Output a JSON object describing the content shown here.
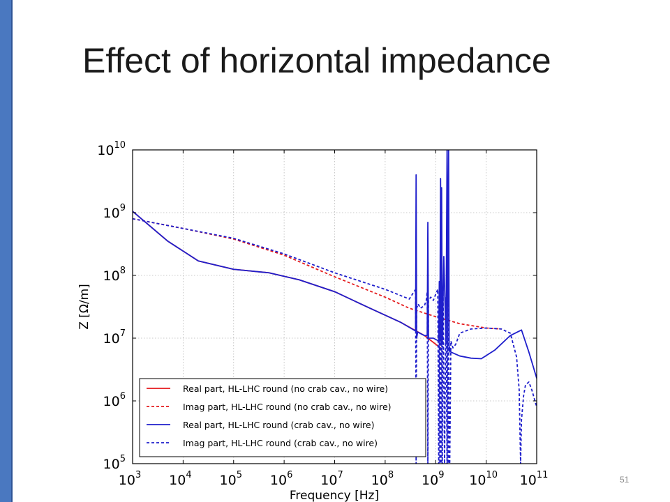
{
  "slide": {
    "title": "Effect of horizontal impedance",
    "page_number": "51",
    "accent_color": "#4a78c0"
  },
  "chart_data": {
    "type": "line",
    "xlabel": "Frequency [Hz]",
    "ylabel": "Z [Ω/m]",
    "xscale": "log",
    "yscale": "log",
    "xlim": [
      1000,
      100000000000
    ],
    "ylim": [
      100000,
      10000000000
    ],
    "grid": true,
    "legend_position": "lower-left",
    "x_tick_values": [
      1000,
      10000,
      100000,
      1000000,
      10000000,
      100000000,
      1000000000,
      10000000000,
      100000000000
    ],
    "x_tick_labels": [
      {
        "base": "10",
        "exp": "3"
      },
      {
        "base": "10",
        "exp": "4"
      },
      {
        "base": "10",
        "exp": "5"
      },
      {
        "base": "10",
        "exp": "6"
      },
      {
        "base": "10",
        "exp": "7"
      },
      {
        "base": "10",
        "exp": "8"
      },
      {
        "base": "10",
        "exp": "9"
      },
      {
        "base": "10",
        "exp": "10"
      },
      {
        "base": "10",
        "exp": "11"
      }
    ],
    "y_tick_values": [
      100000,
      1000000,
      10000000,
      100000000,
      1000000000,
      10000000000
    ],
    "y_tick_labels": [
      {
        "base": "10",
        "exp": "5"
      },
      {
        "base": "10",
        "exp": "6"
      },
      {
        "base": "10",
        "exp": "7"
      },
      {
        "base": "10",
        "exp": "8"
      },
      {
        "base": "10",
        "exp": "9"
      },
      {
        "base": "10",
        "exp": "10"
      }
    ],
    "series": [
      {
        "name": "Real part, HL-LHC round (no crab cav., no wire)",
        "color": "#e41a1c",
        "dash": "solid",
        "x": [
          1000,
          5000,
          20000,
          100000,
          500000,
          2000000,
          10000000,
          50000000,
          200000000,
          600000000,
          1000000000,
          1300000000
        ],
        "y": [
          1050000000,
          350000000,
          170000000,
          125000000,
          110000000,
          85000000,
          55000000,
          30000000,
          18000000,
          11000000,
          8000000,
          6800000
        ]
      },
      {
        "name": "Imag part, HL-LHC round (no crab cav., no wire)",
        "color": "#e41a1c",
        "dash": "dashed",
        "x": [
          1000,
          10000,
          100000,
          1000000,
          10000000,
          100000000,
          300000000,
          1000000000,
          3000000000,
          10000000000,
          20000000000
        ],
        "y": [
          800000000,
          560000000,
          380000000,
          210000000,
          95000000,
          45000000,
          30000000,
          22000000,
          17000000,
          14500000,
          14000000
        ]
      },
      {
        "name": "Real part, HL-LHC round (crab cav., no wire)",
        "color": "#1f1fcc",
        "dash": "solid",
        "x": [
          1000,
          5000,
          20000,
          100000,
          500000,
          2000000,
          10000000,
          50000000,
          200000000,
          400000000,
          410000000,
          420000000,
          440000000,
          600000000,
          680000000,
          700000000,
          720000000,
          900000000,
          1150000000,
          1180000000,
          1210000000,
          1250000000,
          1280000000,
          1310000000,
          1350000000,
          1450000000,
          1600000000,
          1680000000,
          1720000000,
          1760000000,
          1800000000,
          1850000000,
          1900000000,
          2000000000,
          3000000000,
          5000000000,
          8000000000,
          15000000000,
          30000000000,
          50000000000,
          70000000000,
          100000000000
        ],
        "y": [
          1050000000,
          350000000,
          170000000,
          125000000,
          110000000,
          85000000,
          55000000,
          30000000,
          18000000,
          13000000,
          4000000000,
          10000000,
          12500000,
          11000000,
          11000000,
          700000000,
          10000000,
          10000000,
          9000000,
          80000000,
          9000000,
          3500000000,
          8500000,
          2500000000,
          8000000,
          200000000,
          8000000,
          10000000000,
          7000000,
          600000000,
          10000000000,
          6000000,
          7000000,
          6000000,
          5200000,
          4800000,
          4700000,
          6500000,
          11000000,
          13500000,
          6000000,
          2300000
        ]
      },
      {
        "name": "Imag part, HL-LHC round (crab cav., no wire)",
        "color": "#1f1fcc",
        "dash": "dashed",
        "x": [
          1000,
          10000,
          100000,
          1000000,
          10000000,
          100000000,
          300000000,
          400000000,
          410000000,
          420000000,
          450000000,
          500000000,
          600000000,
          650000000,
          680000000,
          700000000,
          720000000,
          800000000,
          900000000,
          1000000000,
          1100000000,
          1150000000,
          1180000000,
          1210000000,
          1250000000,
          1280000000,
          1310000000,
          1350000000,
          1400000000,
          1500000000,
          1600000000,
          1680000000,
          1720000000,
          1760000000,
          1800000000,
          1850000000,
          1900000000,
          2000000000,
          2200000000,
          2500000000,
          3000000000,
          5000000000,
          10000000000,
          20000000000,
          30000000000,
          40000000000,
          45000000000,
          48000000000,
          50000000000,
          55000000000,
          60000000000,
          70000000000,
          80000000000,
          100000000000
        ],
        "y": [
          800000000,
          560000000,
          390000000,
          220000000,
          110000000,
          60000000,
          42000000,
          60000000,
          100000,
          30000000,
          35000000,
          30000000,
          33000000,
          40000000,
          55000000,
          100000,
          40000000,
          45000000,
          40000000,
          50000000,
          60000000,
          100000,
          55000000,
          100000,
          90000000,
          100000,
          80000000,
          100000,
          60000000,
          100000,
          45000000,
          100000,
          30000000,
          100000,
          40000000,
          100000,
          100000,
          9000000,
          7000000,
          8000000,
          12000000,
          14000000,
          14500000,
          14000000,
          12000000,
          5000000,
          1500000,
          100000,
          500000,
          1200000,
          1800000,
          2000000,
          1500000,
          800000
        ]
      }
    ]
  }
}
